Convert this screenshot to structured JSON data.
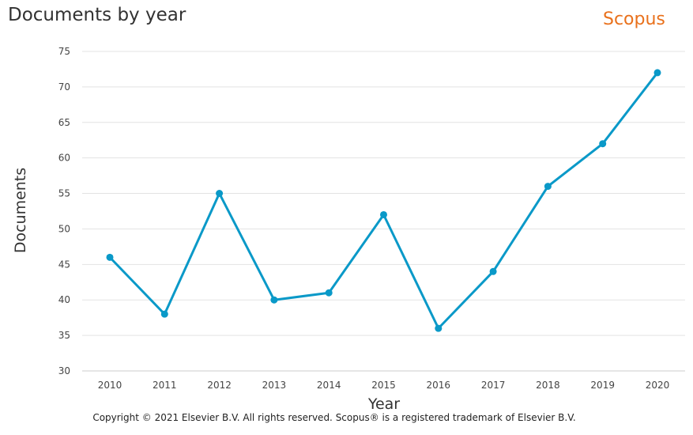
{
  "header": {
    "title": "Documents by year",
    "brand": "Scopus"
  },
  "footer": {
    "copyright": "Copyright © 2021 Elsevier B.V. All rights reserved. Scopus® is a registered trademark of Elsevier B.V."
  },
  "chart_data": {
    "type": "line",
    "title": "Documents by year",
    "xlabel": "Year",
    "ylabel": "Documents",
    "ylim": [
      30,
      75
    ],
    "yticks": [
      "75",
      "70",
      "65",
      "60",
      "55",
      "50",
      "45",
      "40",
      "35",
      "30"
    ],
    "categories": [
      "2010",
      "2011",
      "2012",
      "2013",
      "2014",
      "2015",
      "2016",
      "2017",
      "2018",
      "2019",
      "2020"
    ],
    "values": [
      46,
      38,
      55,
      40,
      41,
      52,
      36,
      44,
      56,
      62,
      72
    ],
    "grid": true,
    "line_color": "#0a99c8",
    "brand_color": "#e9711c"
  }
}
